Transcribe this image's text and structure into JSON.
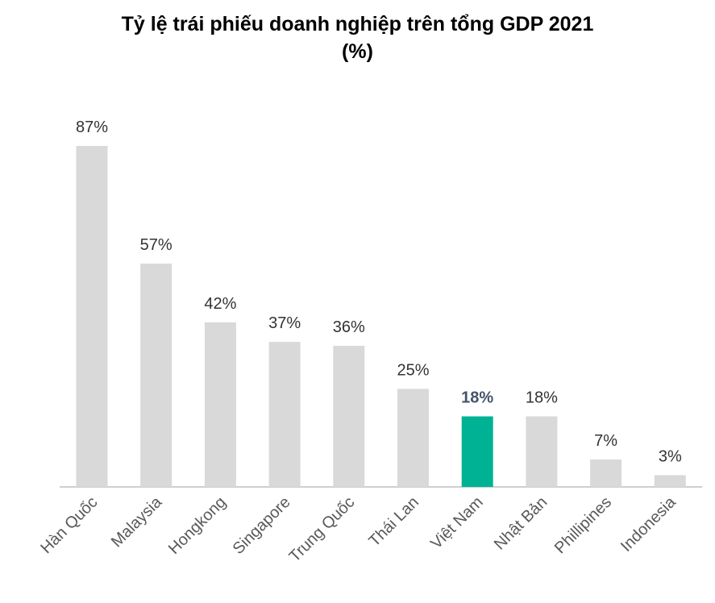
{
  "chart_data": {
    "type": "bar",
    "title": "Tỷ lệ trái phiếu doanh nghiệp trên tổng GDP 2021",
    "subtitle": "(%)",
    "categories": [
      "Hàn Quốc",
      "Malaysia",
      "Hongkong",
      "Singapore",
      "Trung Quốc",
      "Thái Lan",
      "Việt Nam",
      "Nhật Bản",
      "Phillipines",
      "Indonesia"
    ],
    "values": [
      87,
      57,
      42,
      37,
      36,
      25,
      18,
      18,
      7,
      3
    ],
    "value_labels": [
      "87%",
      "57%",
      "42%",
      "37%",
      "36%",
      "25%",
      "18%",
      "18%",
      "7%",
      "3%"
    ],
    "highlight_index": 6,
    "colors": {
      "bar": "#d9d9d9",
      "highlight": "#00b294",
      "axis": "#bfbfbf",
      "highlight_label": "#44546a"
    },
    "ylim": [
      0,
      87
    ],
    "grid": false,
    "legend": "none"
  }
}
